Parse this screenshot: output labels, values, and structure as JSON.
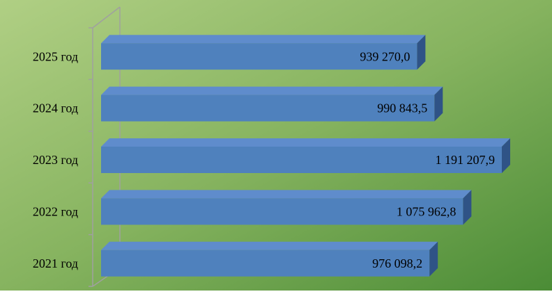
{
  "chart_data": {
    "type": "bar3d_horizontal",
    "categories": [
      "2021 год",
      "2022 год",
      "2023 год",
      "2024 год",
      "2025 год"
    ],
    "values": [
      976098.2,
      1075962.8,
      1191207.9,
      990843.5,
      939270.0
    ],
    "value_labels": [
      "976 098,2",
      "1 075 962,8",
      "1 191 207,9",
      "990 843,5",
      "939 270,0"
    ],
    "color": "#4f81bd"
  }
}
